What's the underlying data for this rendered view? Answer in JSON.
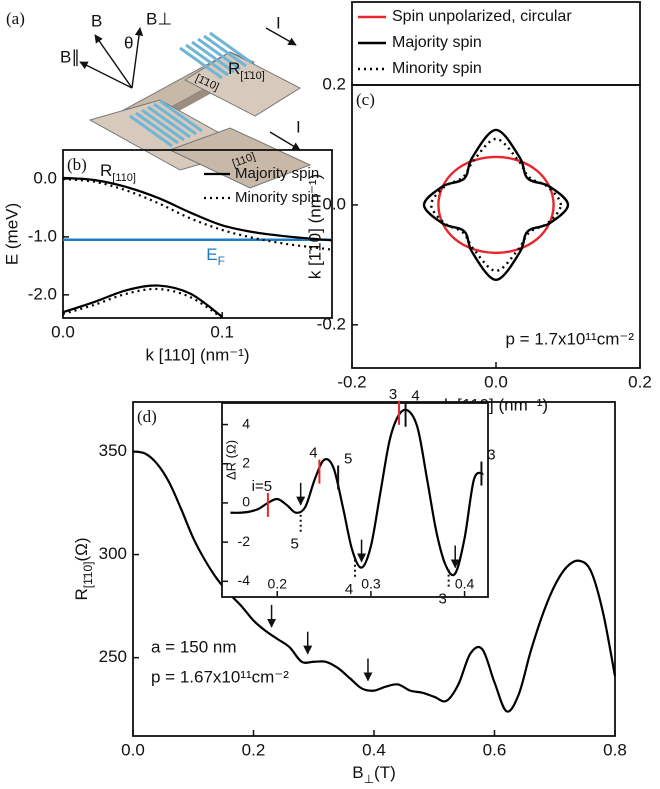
{
  "schematic": {
    "panel_label": "(a)",
    "labels": [
      "B",
      "B⊥",
      "θ",
      "B∥",
      "I",
      "[1̄10]",
      "[110]",
      "I"
    ],
    "r_top": {
      "text": "R",
      "sub": "[1̄10]"
    },
    "r_bottom": {
      "text": "R",
      "sub": "[110]"
    }
  },
  "chart_data": [
    {
      "type": "line",
      "panel_label": "(b)",
      "xlabel": "k [110] (nm⁻¹)",
      "ylabel": "E (meV)",
      "xlim": [
        0,
        0.169
      ],
      "ylim": [
        -2.4,
        0.5
      ],
      "xticks": [
        {
          "value": 0,
          "label": "0.0"
        },
        0.1
      ],
      "yticks": [
        {
          "value": 0,
          "label": "0.0"
        },
        {
          "value": -1,
          "label": "-1.0"
        },
        {
          "value": -2,
          "label": "-2.0"
        }
      ],
      "x": [
        0,
        0.02,
        0.04,
        0.06,
        0.08,
        0.1,
        0.12,
        0.14,
        0.16,
        0.169
      ],
      "series": [
        {
          "name": "Majority spin",
          "color": "#000000",
          "dash": "solid",
          "bands": [
            [
              0.02,
              -0.02,
              -0.14,
              -0.33,
              -0.58,
              -0.8,
              -0.92,
              -0.99,
              -1.04,
              -1.06
            ],
            [
              -2.3,
              -2.12,
              -1.92,
              -1.84,
              -1.98,
              -2.38,
              null,
              null,
              null,
              null
            ]
          ]
        },
        {
          "name": "Minority spin",
          "color": "#000000",
          "dash": "dotted",
          "bands": [
            [
              0,
              -0.05,
              -0.2,
              -0.42,
              -0.68,
              -0.88,
              -1.02,
              -1.12,
              -1.19,
              -1.22
            ],
            [
              -2.33,
              -2.17,
              -1.98,
              -1.9,
              -2.04,
              -2.4,
              null,
              null,
              null,
              null
            ]
          ]
        }
      ],
      "legend": "upper right",
      "hline": {
        "value": -1.05,
        "color": "#1f7bbf",
        "label": "E",
        "label_sub": "F"
      }
    },
    {
      "type": "curve",
      "panel_label": "(c)",
      "xlabel": "k [110] (nm⁻¹)",
      "ylabel": "k [1̄10] (nm⁻¹)",
      "xlim": [
        -0.2,
        0.2
      ],
      "ylim": [
        -0.272,
        0.2
      ],
      "xticks": [
        -0.2,
        {
          "value": 0,
          "label": "0.0"
        },
        0.2
      ],
      "yticks": [
        -0.2,
        {
          "value": 0,
          "label": "0.0"
        },
        0.2
      ],
      "series": [
        {
          "name": "Spin unpolarized, circular",
          "color": "#e8262b",
          "dash": "solid",
          "x": [
            0.08,
            0.074,
            0.057,
            0.031,
            0,
            -0.031,
            -0.057,
            -0.074,
            -0.08,
            -0.074,
            -0.057,
            -0.031,
            0,
            0.031,
            0.057,
            0.074
          ],
          "y": [
            0,
            0.031,
            0.057,
            0.074,
            0.08,
            0.074,
            0.057,
            0.031,
            0,
            -0.031,
            -0.057,
            -0.074,
            -0.08,
            -0.074,
            -0.057,
            -0.031
          ]
        },
        {
          "name": "Majority spin",
          "color": "#000000",
          "dash": "solid",
          "x": [
            0.1,
            0.074,
            0.044,
            0.033,
            0,
            -0.033,
            -0.044,
            -0.074,
            -0.1,
            -0.074,
            -0.044,
            -0.033,
            0,
            0.033,
            0.044,
            0.074
          ],
          "y": [
            0,
            0.031,
            0.044,
            0.079,
            0.125,
            0.079,
            0.044,
            0.031,
            0,
            -0.031,
            -0.044,
            -0.079,
            -0.125,
            -0.079,
            -0.044,
            -0.031
          ]
        },
        {
          "name": "Minority spin",
          "color": "#000000",
          "dash": "dotted",
          "x": [
            0.09,
            0.072,
            0.046,
            0.031,
            0,
            -0.031,
            -0.046,
            -0.072,
            -0.09,
            -0.072,
            -0.046,
            -0.031,
            0,
            0.031,
            0.046,
            0.072
          ],
          "y": [
            0,
            0.03,
            0.046,
            0.074,
            0.11,
            0.074,
            0.046,
            0.03,
            0,
            -0.03,
            -0.046,
            -0.074,
            -0.11,
            -0.074,
            -0.046,
            -0.03
          ]
        }
      ],
      "legend": "above",
      "annotation": "p = 1.7x10¹¹cm⁻²"
    },
    {
      "type": "line",
      "panel_label": "(d)",
      "xlabel": {
        "text": "B",
        "sub": "⊥",
        "after": "(T)"
      },
      "ylabel": {
        "text": "R",
        "sub": "[1̄10]",
        "after": "(Ω)"
      },
      "xlim": [
        0,
        0.8
      ],
      "ylim": [
        212,
        374
      ],
      "xticks": [
        {
          "value": 0,
          "label": "0.0"
        },
        0.2,
        0.4,
        0.6,
        0.8
      ],
      "yticks": [
        250,
        300,
        350
      ],
      "x": [
        0,
        0.02,
        0.04,
        0.06,
        0.08,
        0.1,
        0.12,
        0.14,
        0.16,
        0.18,
        0.2,
        0.22,
        0.24,
        0.26,
        0.28,
        0.3,
        0.32,
        0.34,
        0.36,
        0.38,
        0.4,
        0.42,
        0.44,
        0.46,
        0.48,
        0.5,
        0.52,
        0.54,
        0.56,
        0.58,
        0.6,
        0.62,
        0.64,
        0.66,
        0.68,
        0.7,
        0.72,
        0.74,
        0.76,
        0.78,
        0.8
      ],
      "series": [
        {
          "color": "#000000",
          "dash": "solid",
          "values": [
            350,
            349,
            344,
            335,
            322,
            308,
            297,
            288,
            281,
            275,
            268,
            263,
            259,
            255,
            248,
            248,
            248,
            245,
            240,
            235,
            234,
            236,
            237,
            234,
            233,
            231,
            229,
            237,
            252,
            254,
            238,
            224,
            232,
            253,
            271,
            285,
            294,
            297,
            292,
            272,
            241
          ]
        }
      ],
      "arrows": [
        {
          "x": 0.23,
          "y": 262
        },
        {
          "x": 0.29,
          "y": 249
        },
        {
          "x": 0.39,
          "y": 236
        }
      ],
      "annotations": [
        "a = 150 nm",
        "p = 1.67x10¹¹cm⁻²"
      ]
    },
    {
      "type": "line",
      "ylabel": "ΔR (Ω)",
      "xlim": [
        0.141,
        0.425
      ],
      "ylim": [
        -4.8,
        5.1
      ],
      "xticks": [
        0.2,
        0.3,
        0.4
      ],
      "yticks": [
        -4,
        -2,
        0,
        2,
        4
      ],
      "x": [
        0.15,
        0.16,
        0.17,
        0.18,
        0.19,
        0.2,
        0.21,
        0.22,
        0.23,
        0.24,
        0.25,
        0.26,
        0.27,
        0.28,
        0.29,
        0.3,
        0.31,
        0.32,
        0.33,
        0.34,
        0.35,
        0.36,
        0.37,
        0.38,
        0.39,
        0.4,
        0.41,
        0.42
      ],
      "series": [
        {
          "color": "#000000",
          "dash": "solid",
          "values": [
            -0.5,
            -0.5,
            -0.45,
            -0.3,
            0,
            0.2,
            -0.1,
            -0.5,
            -0.2,
            1.2,
            2.2,
            1.8,
            -0.2,
            -2.4,
            -3.3,
            -2.2,
            0.5,
            3.2,
            4.5,
            4.7,
            3.8,
            1.2,
            -1.5,
            -3.2,
            -3.6,
            -1.8,
            1.2,
            1.5
          ]
        }
      ],
      "marker_color": "#e8262b",
      "red_markers": [
        {
          "x": 0.19,
          "y": -0.1,
          "label": "i=5"
        },
        {
          "x": 0.245,
          "y": 1.6,
          "label": "4"
        },
        {
          "x": 0.33,
          "y": 4.6,
          "label": "3"
        }
      ],
      "black_markers": [
        {
          "x": 0.265,
          "y": 1.3,
          "label": "5"
        },
        {
          "x": 0.337,
          "y": 4.5,
          "label": "4"
        },
        {
          "x": 0.418,
          "y": 1.5,
          "label": "3"
        }
      ],
      "dotted_markers": [
        {
          "x": 0.225,
          "y": -0.5,
          "label": "5"
        },
        {
          "x": 0.283,
          "y": -2.8,
          "label": "4"
        },
        {
          "x": 0.383,
          "y": -3.3,
          "label": "3"
        }
      ],
      "arrows": [
        {
          "x": 0.225,
          "y": -0.4
        },
        {
          "x": 0.29,
          "y": -3.3
        },
        {
          "x": 0.39,
          "y": -3.6
        }
      ]
    }
  ]
}
